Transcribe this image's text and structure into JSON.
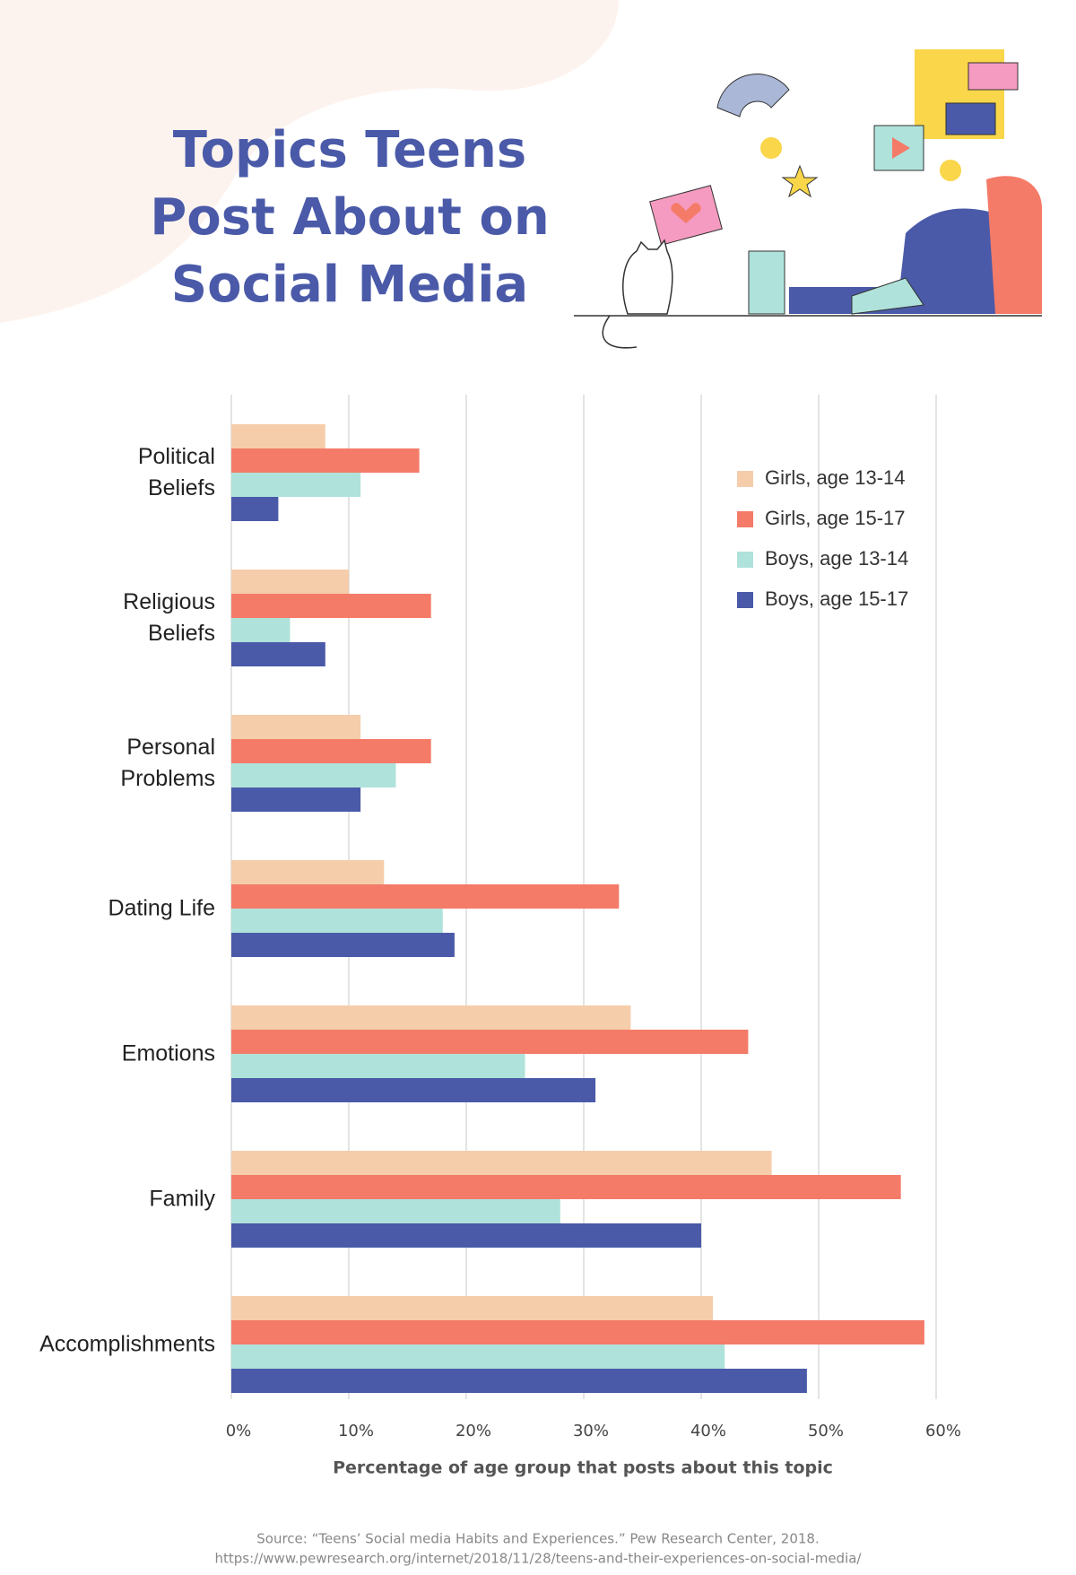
{
  "chart_data": {
    "type": "bar",
    "orientation": "horizontal",
    "title": "Topics Teens\nPost About on\nSocial Media",
    "categories": [
      "Political\nBeliefs",
      "Religious\nBeliefs",
      "Personal\nProblems",
      "Dating Life",
      "Emotions",
      "Family",
      "Accomplishments"
    ],
    "series": [
      {
        "name": "Girls, age 13-14",
        "color": "#f5cdab",
        "values": [
          8,
          10,
          11,
          13,
          34,
          46,
          41
        ]
      },
      {
        "name": "Girls, age 15-17",
        "color": "#f47b68",
        "values": [
          16,
          17,
          17,
          33,
          44,
          57,
          59
        ]
      },
      {
        "name": "Boys, age 13-14",
        "color": "#afe2db",
        "values": [
          11,
          5,
          14,
          18,
          25,
          28,
          42
        ]
      },
      {
        "name": "Boys, age 15-17",
        "color": "#4a5aa8",
        "values": [
          4,
          8,
          11,
          19,
          31,
          40,
          49
        ]
      }
    ],
    "xlim": [
      0,
      60
    ],
    "xticks": [
      {
        "value": 0,
        "label": "0%"
      },
      {
        "value": 10,
        "label": "10%"
      },
      {
        "value": 20,
        "label": "20%"
      },
      {
        "value": 30,
        "label": "30%"
      },
      {
        "value": 40,
        "label": "40%"
      },
      {
        "value": 50,
        "label": "50%"
      },
      {
        "value": 60,
        "label": "60%"
      }
    ],
    "xlabel": "Percentage of age group that posts about this topic",
    "grid": true,
    "legend": "upper right",
    "source": [
      "Source: “Teens’ Social media Habits and Experiences.” Pew Research Center, 2018.",
      "https://www.pewresearch.org/internet/2018/11/28/teens-and-their-experiences-on-social-media/"
    ]
  }
}
